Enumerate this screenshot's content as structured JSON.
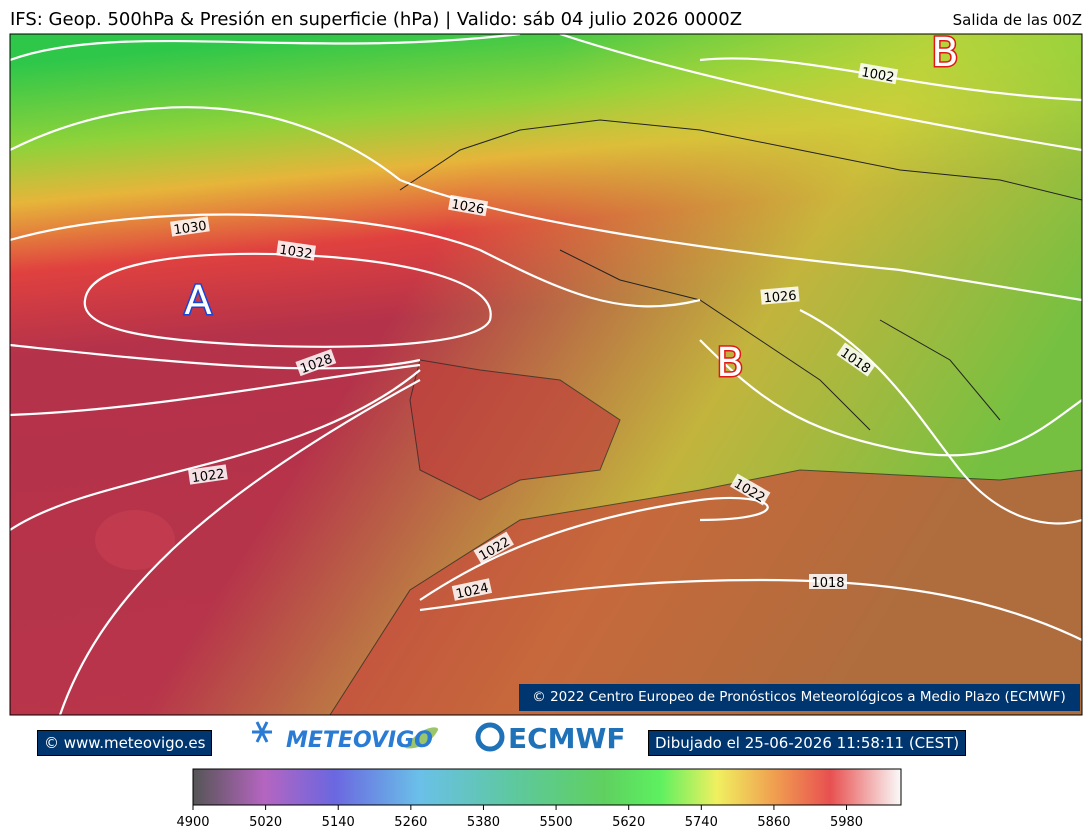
{
  "header": {
    "title": "IFS: Geop. 500hPa & Presión en superficie (hPa) | Valido: sáb 04 julio 2026 0000Z",
    "run": "Salida de las 00Z"
  },
  "map": {
    "isobar_labels": [
      "1002",
      "1026",
      "1030",
      "1032",
      "1028",
      "1022",
      "1026",
      "1018",
      "1022",
      "1022",
      "1024",
      "1018"
    ],
    "centers": [
      "A",
      "B",
      "B"
    ],
    "credit": "© 2022 Centro Europeo de Pronósticos Meteorológicos a Medio Plazo (ECMWF)"
  },
  "footer": {
    "site": "© www.meteovigo.es",
    "logo": "METEOVIGO",
    "ecmwf": "ECMWF",
    "drawn": "Dibujado el 25-06-2026 11:58:11 (CEST)"
  },
  "colorbar": {
    "range": [
      4900,
      6070
    ],
    "ticks": [
      4900,
      5020,
      5140,
      5260,
      5380,
      5500,
      5620,
      5740,
      5860,
      5980
    ]
  }
}
